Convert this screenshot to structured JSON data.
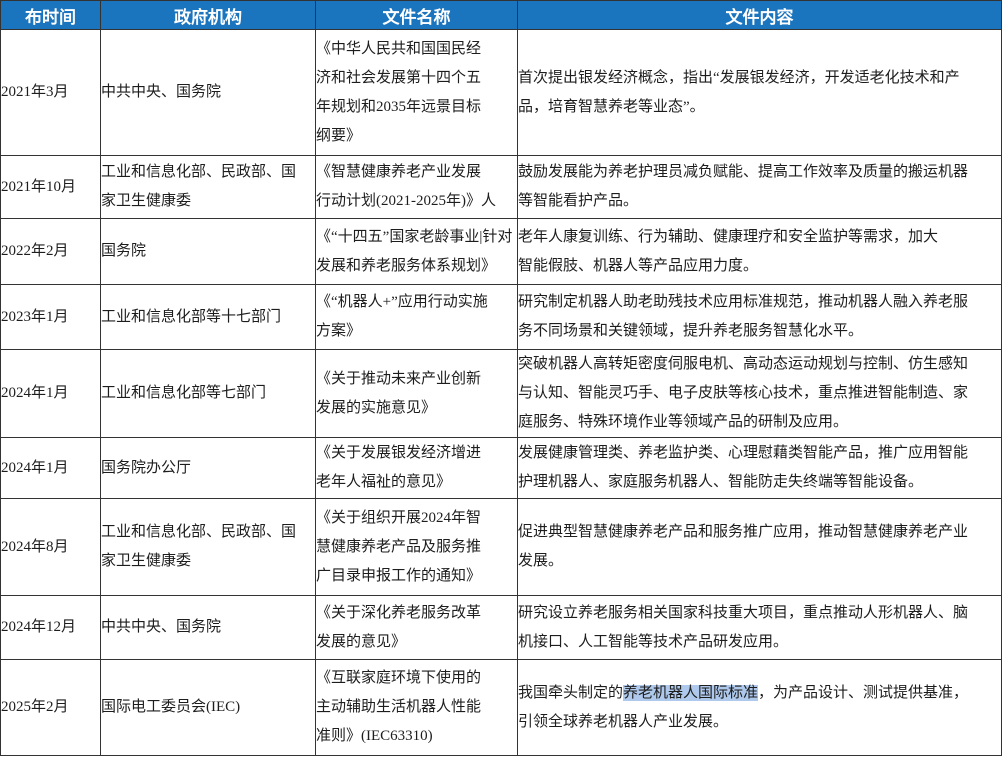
{
  "colors": {
    "header_bg": "#1b74be",
    "header_text": "#ffffff",
    "grid_line": "#333333",
    "body_text": "#1d1d1d",
    "selection_highlight": "#aec9ec"
  },
  "table": {
    "headers": {
      "time": "布时间",
      "agency": "政府机构",
      "doc": "文件名称",
      "content": "文件内容"
    },
    "rows": [
      {
        "time": "2021年3月",
        "agency": "中共中央、国务院",
        "doc": "《中华人民共和国国民经\n济和社会发展第十四个五\n年规划和2035年远景目标\n纲要》",
        "content": "首次提出银发经济概念，指出“发展银发经济，开发适老化技术和产\n品，培育智慧养老等业态”。"
      },
      {
        "time": "2021年10月",
        "agency": "工业和信息化部、民政部、国\n家卫生健康委",
        "doc": "《智慧健康养老产业发展\n行动计划(2021-2025年)》人",
        "content": "鼓励发展能为养老护理员减负赋能、提高工作效率及质量的搬运机器\n等智能看护产品。"
      },
      {
        "time": "2022年2月",
        "agency": "国务院",
        "doc": "《“十四五”国家老龄事业|针对\n发展和养老服务体系规划》",
        "content": "老年人康复训练、行为辅助、健康理疗和安全监护等需求，加大\n智能假肢、机器人等产品应用力度。"
      },
      {
        "time": "2023年1月",
        "agency": "工业和信息化部等十七部门",
        "doc": "《“机器人+”应用行动实施\n方案》",
        "content": "研究制定机器人助老助残技术应用标准规范，推动机器人融入养老服\n务不同场景和关键领域，提升养老服务智慧化水平。"
      },
      {
        "time": "2024年1月",
        "agency": "工业和信息化部等七部门",
        "doc": "《关于推动未来产业创新\n发展的实施意见》",
        "content": "突破机器人高转矩密度伺服电机、高动态运动规划与控制、仿生感知\n与认知、智能灵巧手、电子皮肤等核心技术，重点推进智能制造、家\n庭服务、特殊环境作业等领域产品的研制及应用。"
      },
      {
        "time": "2024年1月",
        "agency": "国务院办公厅",
        "doc": "《关于发展银发经济增进\n老年人福祉的意见》",
        "content": "发展健康管理类、养老监护类、心理慰藉类智能产品，推广应用智能\n护理机器人、家庭服务机器人、智能防走失终端等智能设备。"
      },
      {
        "time": "2024年8月",
        "agency": "工业和信息化部、民政部、国\n家卫生健康委",
        "doc": "《关于组织开展2024年智\n慧健康养老产品及服务推\n广目录申报工作的通知》",
        "content": "促进典型智慧健康养老产品和服务推广应用，推动智慧健康养老产业\n发展。"
      },
      {
        "time": "2024年12月",
        "agency": "中共中央、国务院",
        "doc": "《关于深化养老服务改革\n发展的意见》",
        "content": "研究设立养老服务相关国家科技重大项目，重点推动人形机器人、脑\n机接口、人工智能等技术产品研发应用。"
      },
      {
        "time": "2025年2月",
        "agency": "国际电工委员会(IEC)",
        "doc": "《互联家庭环境下使用的\n主动辅助生活机器人性能\n准则》(IEC63310)",
        "content_prefix": "我国牵头制定的",
        "content_highlight": "养老机器人国际标准",
        "content_suffix": "，为产品设计、测试提供基准，\n引领全球养老机器人产业发展。"
      }
    ]
  }
}
